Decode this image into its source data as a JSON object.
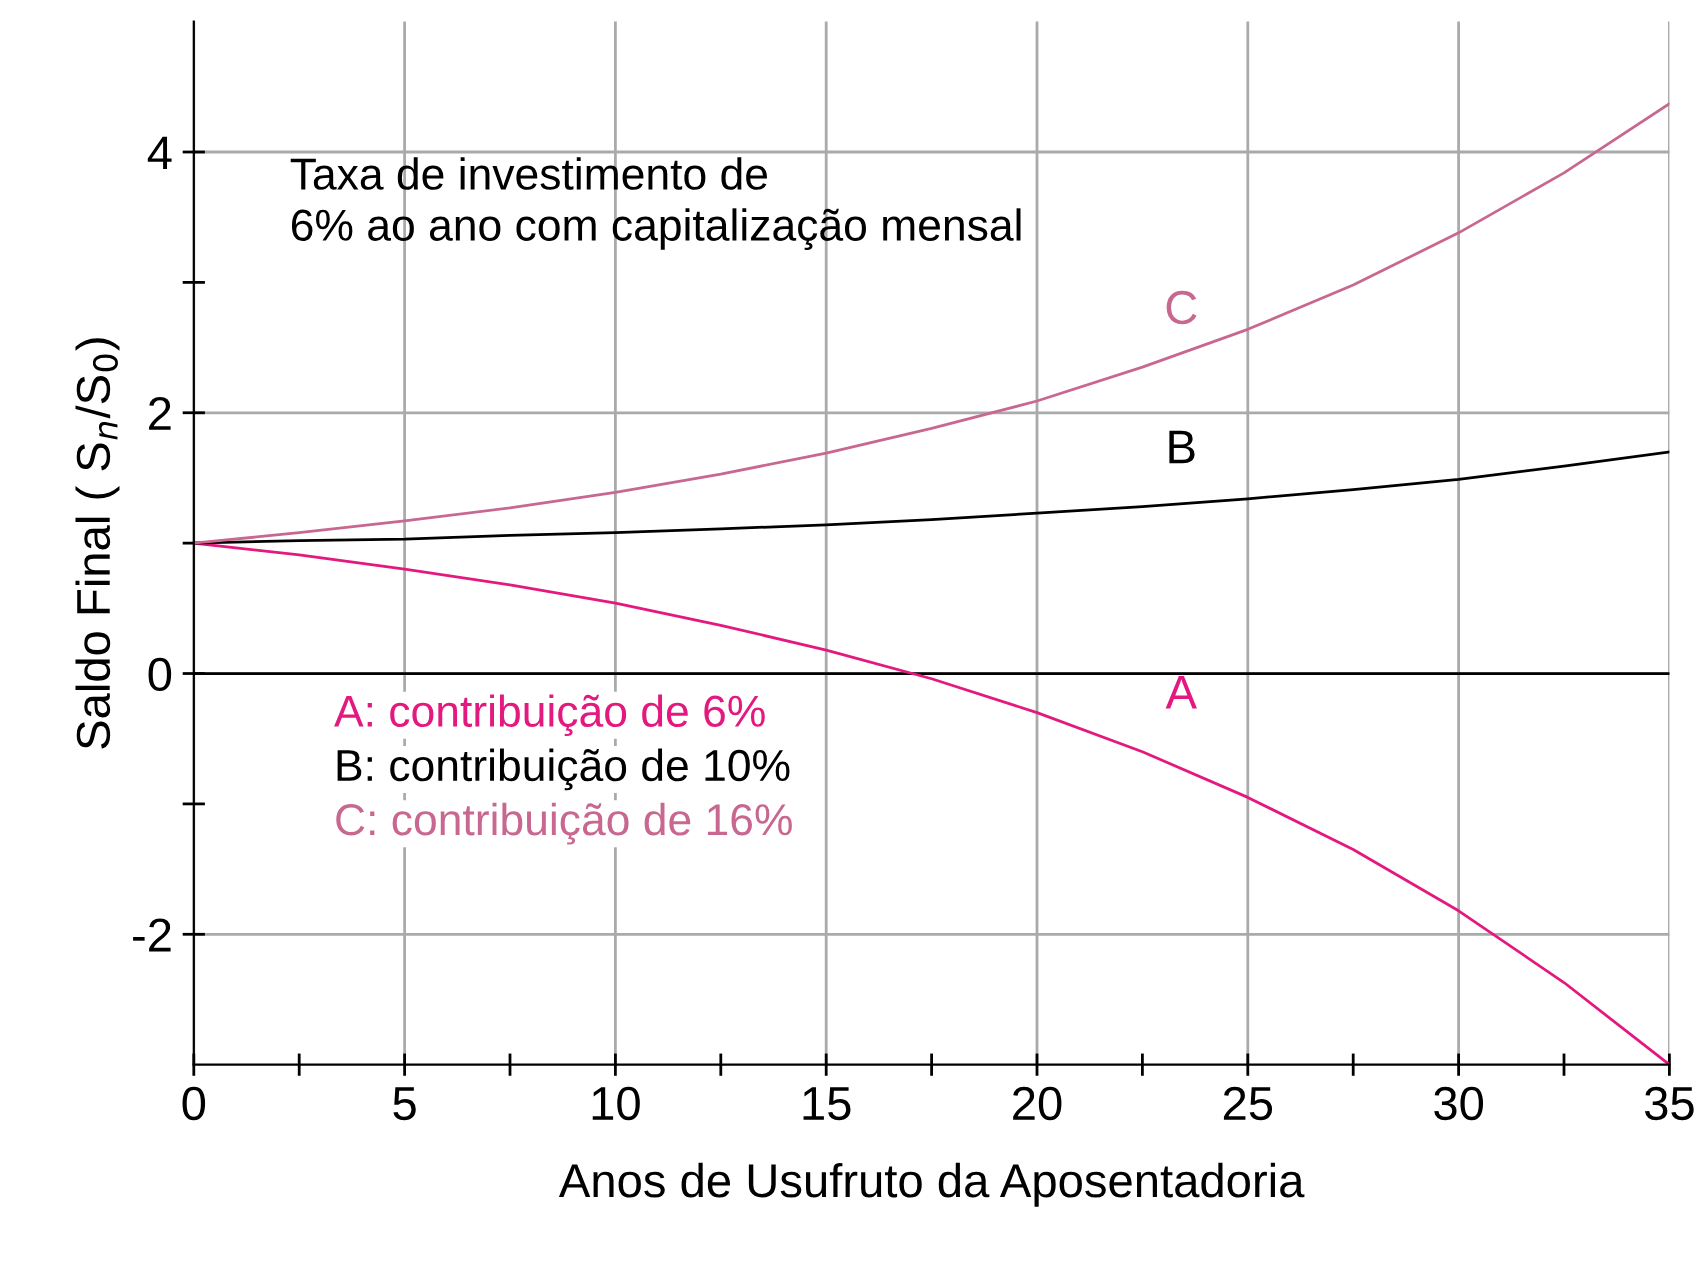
{
  "chart_data": {
    "type": "line",
    "xlabel": "Anos de Usufruto da Aposentadoria",
    "ylabel": "Saldo Final ( S$_{n}$/S$_{0}$)",
    "x": [
      0,
      2.5,
      5,
      7.5,
      10,
      12.5,
      15,
      17.5,
      20,
      22.5,
      25,
      27.5,
      30,
      32.5,
      35
    ],
    "series": [
      {
        "name": "A",
        "color": "#e4197f",
        "values": [
          1,
          0.91,
          0.8,
          0.68,
          0.54,
          0.37,
          0.18,
          -0.04,
          -0.3,
          -0.6,
          -0.95,
          -1.35,
          -1.82,
          -2.37,
          -3.0
        ]
      },
      {
        "name": "B",
        "color": "#000000",
        "values": [
          1,
          1.02,
          1.03,
          1.06,
          1.08,
          1.11,
          1.14,
          1.18,
          1.23,
          1.28,
          1.34,
          1.41,
          1.49,
          1.59,
          1.7
        ]
      },
      {
        "name": "C",
        "color": "#c86890",
        "values": [
          1,
          1.08,
          1.17,
          1.27,
          1.39,
          1.53,
          1.69,
          1.88,
          2.09,
          2.35,
          2.64,
          2.98,
          3.38,
          3.84,
          4.37
        ]
      }
    ],
    "xlim": [
      0,
      35
    ],
    "ylim": [
      -3,
      5
    ],
    "xticks": [
      0,
      {
        "value": 2.5,
        "label": null
      },
      5,
      {
        "value": 7.5,
        "label": null
      },
      10,
      {
        "value": 12.5,
        "label": null
      },
      15,
      {
        "value": 17.5,
        "label": null
      },
      20,
      {
        "value": 22.5,
        "label": null
      },
      25,
      {
        "value": 27.5,
        "label": null
      },
      30,
      {
        "value": 32.5,
        "label": null
      },
      35
    ],
    "yticks": [
      -2,
      {
        "value": -1,
        "label": null
      },
      0,
      {
        "value": 1,
        "label": null
      },
      2,
      {
        "value": 3,
        "label": null
      },
      4
    ],
    "grid": true,
    "marker": "none",
    "line_style": "solid",
    "ref_lines": [
      {
        "axis": "y",
        "value": 0,
        "color": "#000000"
      }
    ],
    "annotations": [
      "Taxa de investimento de\n6% ao ano com capitalização mensal",
      "A: contribuição de 6%",
      "B: contribuição de 10%",
      "C: contribuição de 16%"
    ]
  }
}
